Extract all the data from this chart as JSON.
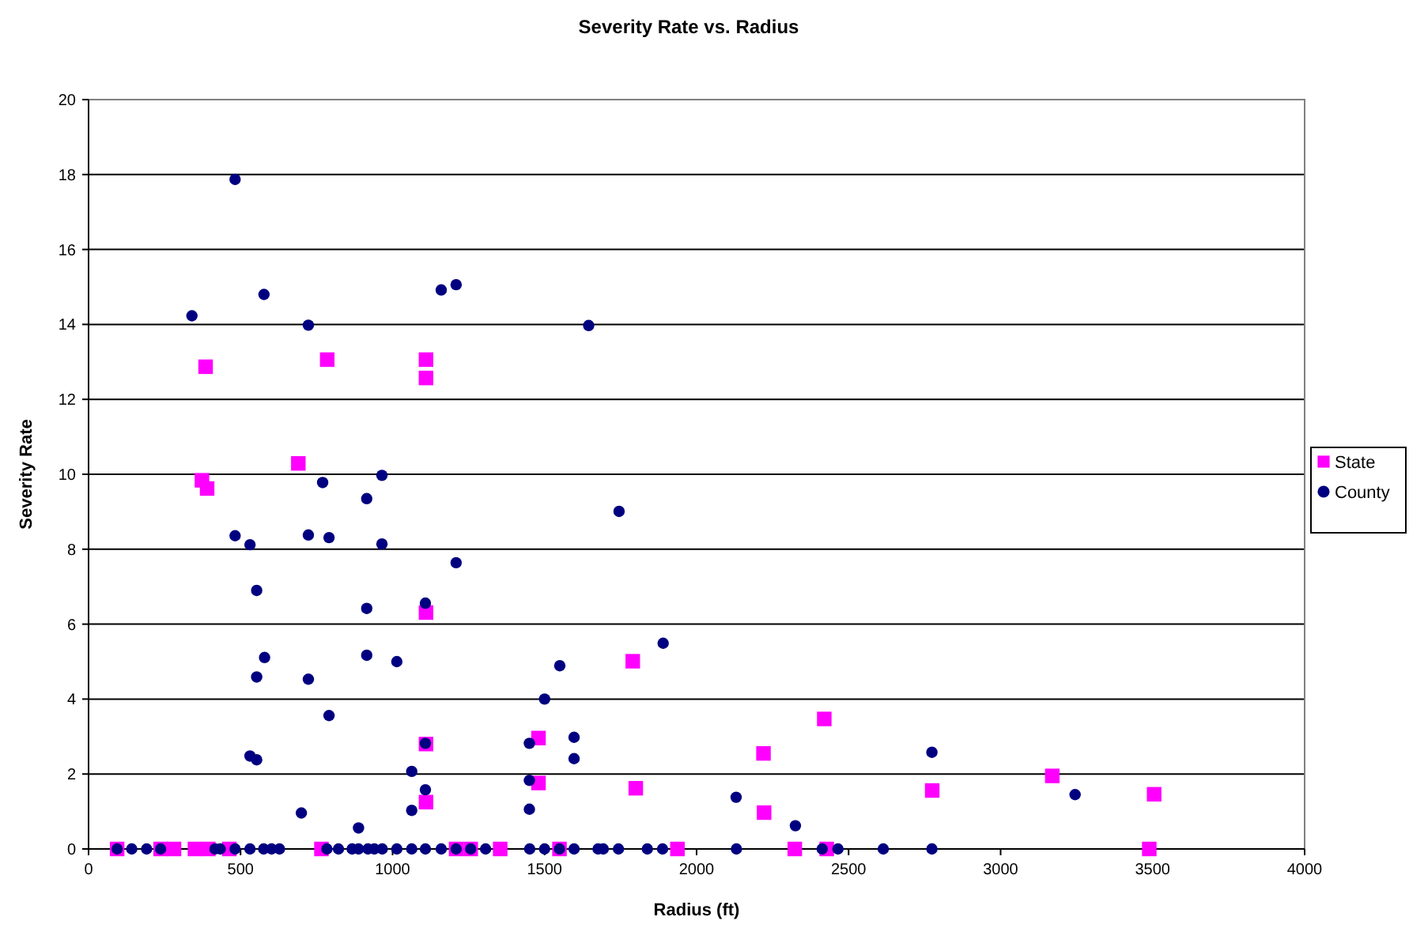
{
  "chart_data": {
    "type": "scatter",
    "title": "Severity Rate vs. Radius",
    "xlabel": "Radius (ft)",
    "ylabel": "Severity Rate",
    "xlim": [
      0,
      4000
    ],
    "xticks": [
      0,
      500,
      1000,
      1500,
      2000,
      2500,
      3000,
      3500,
      4000
    ],
    "ylim": [
      0,
      20
    ],
    "yticks": [
      0,
      2,
      4,
      6,
      8,
      10,
      12,
      14,
      16,
      18,
      20
    ],
    "grid": "y",
    "legend": "right",
    "series": [
      {
        "name": "State",
        "color": "#ff00ff",
        "marker": "square",
        "x": [
          385,
          785,
          1110,
          1110,
          690,
          373,
          390,
          1110,
          1110,
          1480,
          1110,
          1480,
          1790,
          1800,
          2220,
          2420,
          2775,
          2222,
          3170,
          3505,
          94,
          237,
          281,
          350,
          394,
          463,
          766,
          1209,
          1257,
          1354,
          1549,
          1937,
          2323,
          2428,
          3489
        ],
        "values": [
          12.87,
          13.06,
          13.06,
          12.57,
          10.29,
          9.84,
          9.62,
          6.31,
          2.8,
          2.96,
          1.25,
          1.76,
          5.01,
          1.62,
          2.55,
          3.47,
          1.56,
          0.97,
          1.95,
          1.46,
          0,
          0,
          0,
          0,
          0,
          0,
          0,
          0,
          0,
          0,
          0,
          0,
          0,
          0,
          0
        ]
      },
      {
        "name": "County",
        "color": "#000080",
        "marker": "circle",
        "x": [
          482,
          340,
          577,
          723,
          1160,
          1209,
          1645,
          770,
          965,
          915,
          482,
          531,
          723,
          791,
          965,
          1209,
          553,
          915,
          1108,
          579,
          553,
          723,
          915,
          1014,
          1500,
          791,
          531,
          553,
          1108,
          1450,
          1063,
          1108,
          1063,
          700,
          888,
          1450,
          1450,
          1745,
          1890,
          1550,
          1597,
          1597,
          2774,
          2130,
          2325,
          3245,
          94,
          142,
          191,
          237,
          416,
          433,
          482,
          531,
          576,
          602,
          628,
          784,
          822,
          867,
          888,
          919,
          940,
          966,
          1014,
          1063,
          1108,
          1160,
          1209,
          1257,
          1306,
          1451,
          1500,
          1549,
          1597,
          1676,
          1693,
          1743,
          1838,
          1888,
          2131,
          2413,
          2465,
          2614,
          2774
        ],
        "values": [
          17.87,
          14.23,
          14.8,
          13.98,
          14.92,
          15.06,
          13.97,
          9.78,
          9.97,
          9.35,
          8.36,
          8.12,
          8.38,
          8.31,
          8.14,
          7.64,
          6.9,
          6.42,
          6.56,
          5.11,
          4.59,
          4.53,
          5.17,
          5.0,
          4.0,
          3.56,
          2.48,
          2.38,
          2.82,
          2.82,
          2.07,
          1.58,
          1.03,
          0.96,
          0.56,
          1.83,
          1.06,
          9.01,
          5.49,
          4.89,
          2.98,
          2.41,
          2.58,
          1.38,
          0.62,
          1.45,
          0,
          0,
          0,
          0,
          0,
          0,
          0,
          0,
          0,
          0,
          0,
          0,
          0,
          0,
          0,
          0,
          0,
          0,
          0,
          0,
          0,
          0,
          0,
          0,
          0,
          0,
          0,
          0,
          0,
          0,
          0,
          0,
          0,
          0,
          0,
          0,
          0,
          0,
          0
        ]
      }
    ]
  }
}
